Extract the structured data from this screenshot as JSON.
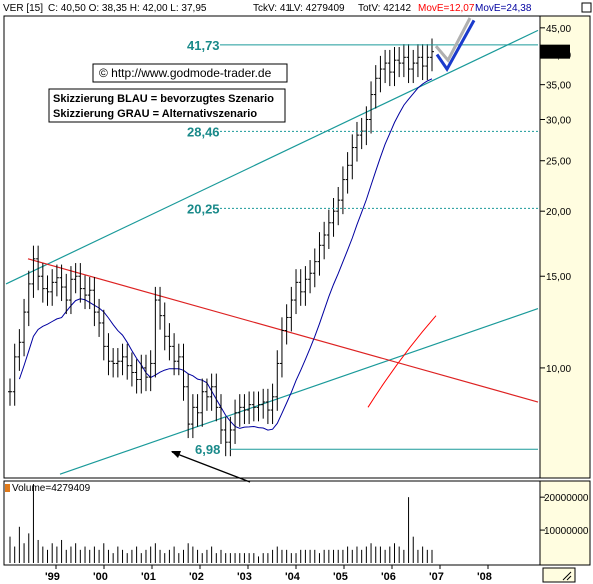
{
  "header": {
    "symbol": "VER [15]",
    "ohlc": "C: 40,50 O: 38,35 H: 42,00 L: 37,95",
    "tkv": "TckV: 41",
    "lv": "LV: 4279409",
    "totv": "TotV: 42142",
    "move12": "MovE=12,07",
    "move24": "MovE=24,38"
  },
  "watermark": "© http://www.godmode-trader.de",
  "legend_box": {
    "line1": "Skizzierung BLAU = bevorzugtes Szenario",
    "line2": "Skizzierung GRAU = Alternativszenario"
  },
  "volume_label": "Volume=4279409",
  "colors": {
    "price_bars": "#000000",
    "ma12": "#ff0000",
    "ma24": "#0000a0",
    "trend_channel": "#1a9a9a",
    "downtrend": "#dd0000",
    "level_text": "#1a8a8a",
    "scenario_blue": "#1a3acc",
    "scenario_grey": "#b0b0b0",
    "axis_bg": "#fffde0"
  },
  "chart_data": {
    "type": "candlestick",
    "title": "VER [15]",
    "y_scale": "log",
    "ylim": [
      6.2,
      47
    ],
    "y_ticks": [
      "45,00",
      "40,00",
      "35,00",
      "30,00",
      "25,00",
      "20,00",
      "15,00",
      "10,00"
    ],
    "y_tick_values": [
      45,
      40,
      35,
      30,
      25,
      20,
      15,
      10
    ],
    "x_ticks": [
      "'99",
      "'00",
      "'01",
      "'02",
      "'03",
      "'04",
      "'05",
      "'06",
      "'07",
      "'08"
    ],
    "last_price_label": "40,50",
    "last_price": 40.5,
    "levels": [
      {
        "label": "41,73",
        "value": 41.73
      },
      {
        "label": "28,46",
        "value": 28.46
      },
      {
        "label": "20,25",
        "value": 20.25
      },
      {
        "label": "6,98",
        "value": 6.98
      }
    ],
    "close_series": [
      9.0,
      10.5,
      11.2,
      12.8,
      14.5,
      16.2,
      15.0,
      14.2,
      14.0,
      14.6,
      14.9,
      14.3,
      13.5,
      14.8,
      15.0,
      14.2,
      13.8,
      14.1,
      12.8,
      12.2,
      11.0,
      10.3,
      10.2,
      10.3,
      10.5,
      10.1,
      9.8,
      9.5,
      10.0,
      9.6,
      10.2,
      13.5,
      12.6,
      11.5,
      11.0,
      10.3,
      10.5,
      9.2,
      7.8,
      8.4,
      8.2,
      9.0,
      8.8,
      9.2,
      8.4,
      7.6,
      7.2,
      7.6,
      8.2,
      8.4,
      8.3,
      8.5,
      8.4,
      8.5,
      8.6,
      8.3,
      8.8,
      10.2,
      11.8,
      12.5,
      13.5,
      14.6,
      14.0,
      14.8,
      15.2,
      16.0,
      17.2,
      18.0,
      19.0,
      20.0,
      21.0,
      23.0,
      24.5,
      26.5,
      28.0,
      28.5,
      30.0,
      33.5,
      36.0,
      37.5,
      38.5,
      37.0,
      39.0,
      38.5,
      39.5,
      37.5,
      38.5,
      39.5,
      38.0,
      39.5,
      40.5
    ],
    "volume_ticks": [
      "20000000",
      "10000000"
    ],
    "volume_tick_values": [
      20000000,
      10000000
    ],
    "volume_max": 24000000,
    "volume_series": [
      8,
      5,
      11,
      6,
      9,
      24,
      7,
      5,
      4,
      6,
      5,
      7,
      4,
      5,
      6,
      4,
      5,
      4,
      5,
      4,
      6,
      4,
      3,
      5,
      4,
      3,
      4,
      5,
      3,
      4,
      5,
      6,
      4,
      3,
      4,
      5,
      3,
      4,
      6,
      5,
      4,
      3,
      4,
      5,
      3,
      4,
      3,
      3,
      3,
      3,
      3,
      3,
      3,
      2,
      3,
      3,
      4,
      5,
      4,
      4,
      3,
      3,
      4,
      4,
      4,
      4,
      3,
      4,
      4,
      4,
      4,
      4,
      5,
      4,
      5,
      4,
      5,
      6,
      5,
      5,
      4,
      5,
      6,
      5,
      4,
      20,
      8,
      4,
      5,
      4,
      4
    ]
  }
}
